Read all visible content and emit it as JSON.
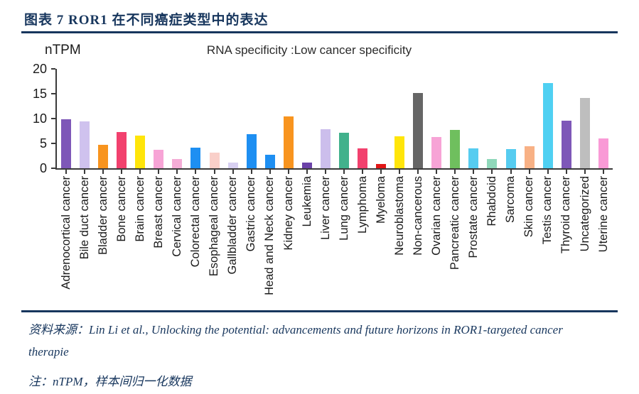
{
  "header": {
    "title": "图表 7  ROR1 在不同癌症类型中的表达"
  },
  "chart": {
    "y_axis_title": "nTPM",
    "title": "RNA specificity :Low cancer specificity"
  },
  "chart_data": {
    "type": "bar",
    "title": "RNA specificity :Low cancer specificity",
    "xlabel": "",
    "ylabel": "nTPM",
    "ylim": [
      0,
      20
    ],
    "yticks": [
      0,
      5,
      10,
      15,
      20
    ],
    "grid": false,
    "legend": "none",
    "categories": [
      "Adrenocortical cancer",
      "Bile duct cancer",
      "Bladder cancer",
      "Bone cancer",
      "Brain cancer",
      "Breast cancer",
      "Cervical cancer",
      "Colorectal cancer",
      "Esophageal cancer",
      "Gallbladder cancer",
      "Gastric cancer",
      "Head and Neck cancer",
      "Kidney cancer",
      "Leukemia",
      "Liver cancer",
      "Lung cancer",
      "Lymphoma",
      "Myeloma",
      "Neuroblastoma",
      "Non-cancerous",
      "Ovarian cancer",
      "Pancreatic cancer",
      "Prostate cancer",
      "Rhabdoid",
      "Sarcoma",
      "Skin cancer",
      "Testis cancer",
      "Thyroid cancer",
      "Uncategorized",
      "Uterine cancer"
    ],
    "values": [
      9.9,
      9.5,
      4.7,
      7.3,
      6.6,
      3.7,
      1.9,
      4.1,
      3.1,
      1.1,
      6.8,
      2.7,
      10.4,
      1.2,
      7.9,
      7.2,
      4.0,
      0.9,
      6.5,
      15.2,
      6.3,
      7.7,
      4.0,
      1.8,
      3.8,
      4.5,
      17.1,
      9.6,
      14.2,
      6.0
    ],
    "colors": [
      "#7E57B8",
      "#CFC2EE",
      "#F8941E",
      "#F2416E",
      "#FFE50A",
      "#F7A4D6",
      "#F4ADD6",
      "#1E8FF2",
      "#F9CFC9",
      "#D8D0F2",
      "#1E8FF2",
      "#1E8FF2",
      "#F8941E",
      "#6B42A8",
      "#CCBEEC",
      "#41B18C",
      "#F2416E",
      "#E01616",
      "#FFE50A",
      "#666666",
      "#F7A4D6",
      "#6FBF5E",
      "#56CCF0",
      "#8FD8BA",
      "#56CCF0",
      "#F8B185",
      "#4FD0F2",
      "#7E57B8",
      "#BEBEBE",
      "#F99AD6"
    ],
    "axis_color": "#3a3a3a"
  },
  "footer": {
    "source_line1": "资料来源：Lin Li et al., Unlocking the potential: advancements and future horizons in ROR1-targeted cancer",
    "source_line2": "therapie",
    "note": "注：nTPM，样本间归一化数据",
    "accent_color": "#17365D"
  }
}
